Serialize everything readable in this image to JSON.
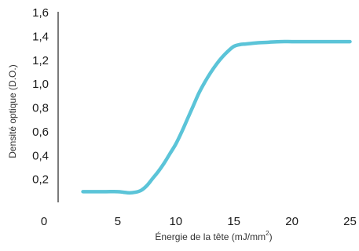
{
  "chart_data": {
    "type": "line",
    "title": "",
    "xlabel": "Énergie de la tête (mJ/mm",
    "xlabel_superscript": "2",
    "xlabel_suffix": ")",
    "ylabel": "Densité optique (D.O.)",
    "xlim": [
      0,
      25
    ],
    "ylim": [
      0,
      1.6
    ],
    "x_ticks": [
      "0",
      "5",
      "10",
      "15",
      "20",
      "25"
    ],
    "y_ticks": [
      "0,2",
      "0,4",
      "0,6",
      "0,8",
      "1,0",
      "1,2",
      "1,4",
      "1,6"
    ],
    "grid": false,
    "line_color": "#5BC4D8",
    "axis_color": "#222222",
    "series": [
      {
        "x": [
          2,
          3,
          4,
          5,
          5.5,
          6,
          6.5,
          7,
          7.5,
          8,
          8.5,
          9,
          9.5,
          10,
          10.5,
          11,
          11.5,
          12,
          12.5,
          13,
          13.5,
          14,
          14.5,
          15,
          15.5,
          16,
          16.5,
          17,
          18,
          19,
          20,
          21,
          22,
          23,
          24,
          25
        ],
        "y": [
          0.09,
          0.09,
          0.09,
          0.09,
          0.085,
          0.08,
          0.085,
          0.1,
          0.14,
          0.2,
          0.26,
          0.33,
          0.41,
          0.49,
          0.59,
          0.7,
          0.81,
          0.92,
          1.01,
          1.09,
          1.16,
          1.22,
          1.27,
          1.31,
          1.325,
          1.33,
          1.335,
          1.34,
          1.345,
          1.35,
          1.35,
          1.35,
          1.35,
          1.35,
          1.35,
          1.35
        ]
      }
    ]
  }
}
